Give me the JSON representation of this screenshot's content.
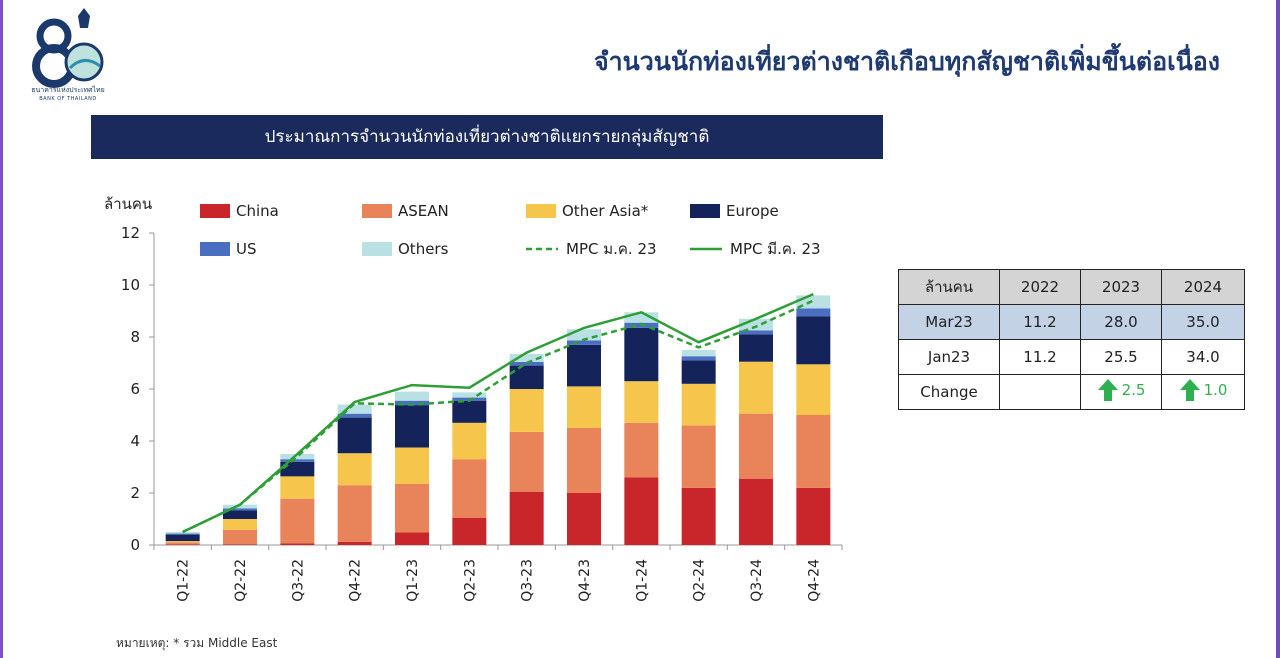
{
  "header": {
    "logo_text": "ธนาคารแห่งประเทศไทย",
    "logo_subtext": "BANK OF THAILAND",
    "title": "จำนวนนักท่องเที่ยวต่างชาติเกือบทุกสัญชาติเพิ่มขึ้นต่อเนื่อง",
    "banner": "ประมาณการจำนวนนักท่องเที่ยวต่างชาติแยกรายกลุ่มสัญชาติ"
  },
  "chart_data": {
    "type": "bar",
    "stacked": true,
    "ylabel": "ล้านคน",
    "ylim": [
      0,
      12
    ],
    "yticks": [
      0,
      2,
      4,
      6,
      8,
      10,
      12
    ],
    "categories": [
      "Q1-22",
      "Q2-22",
      "Q3-22",
      "Q4-22",
      "Q1-23",
      "Q2-23",
      "Q3-23",
      "Q4-23",
      "Q1-24",
      "Q2-24",
      "Q3-24",
      "Q4-24"
    ],
    "series": [
      {
        "name": "China",
        "color": "#c8262b",
        "values": [
          0.02,
          0.03,
          0.06,
          0.12,
          0.48,
          1.05,
          2.05,
          2.0,
          2.6,
          2.2,
          2.55,
          2.2
        ]
      },
      {
        "name": "ASEAN",
        "color": "#e8835a",
        "values": [
          0.08,
          0.55,
          1.72,
          2.18,
          1.87,
          2.25,
          2.3,
          2.5,
          2.1,
          2.4,
          2.5,
          2.8
        ]
      },
      {
        "name": "Other Asia*",
        "color": "#f6c64c",
        "values": [
          0.05,
          0.42,
          0.86,
          1.23,
          1.4,
          1.4,
          1.65,
          1.6,
          1.6,
          1.6,
          2.0,
          1.95
        ]
      },
      {
        "name": "Europe",
        "color": "#14235a",
        "values": [
          0.25,
          0.33,
          0.56,
          1.37,
          1.63,
          0.85,
          0.9,
          1.6,
          2.05,
          0.9,
          1.05,
          1.85
        ]
      },
      {
        "name": "US",
        "color": "#4a6fc0",
        "values": [
          0.04,
          0.08,
          0.1,
          0.15,
          0.17,
          0.12,
          0.14,
          0.17,
          0.2,
          0.16,
          0.15,
          0.3
        ]
      },
      {
        "name": "Others",
        "color": "#b9e0e3",
        "values": [
          0.06,
          0.14,
          0.2,
          0.35,
          0.35,
          0.2,
          0.31,
          0.43,
          0.4,
          0.24,
          0.45,
          0.5
        ]
      }
    ],
    "lines": [
      {
        "name": "MPC ม.ค. 23",
        "color": "#2e9e36",
        "dashed": true,
        "values": [
          0.5,
          1.55,
          3.4,
          5.45,
          5.4,
          5.55,
          7.0,
          7.9,
          8.5,
          7.6,
          8.4,
          9.4
        ]
      },
      {
        "name": "MPC มี.ค. 23",
        "color": "#2e9e36",
        "dashed": false,
        "values": [
          0.5,
          1.55,
          3.5,
          5.5,
          6.15,
          6.05,
          7.4,
          8.35,
          8.95,
          7.8,
          8.7,
          9.65
        ]
      }
    ],
    "legend": [
      "China",
      "ASEAN",
      "Other Asia*",
      "Europe",
      "US",
      "Others",
      "MPC ม.ค. 23",
      "MPC มี.ค. 23"
    ],
    "legend_position": "top"
  },
  "table": {
    "unit": "ล้านคน",
    "years": [
      "2022",
      "2023",
      "2024"
    ],
    "rows": [
      {
        "label": "Mar23",
        "values": [
          "11.2",
          "28.0",
          "35.0"
        ]
      },
      {
        "label": "Jan23",
        "values": [
          "11.2",
          "25.5",
          "34.0"
        ]
      }
    ],
    "change": {
      "label": "Change",
      "values": [
        "",
        "2.5",
        "1.0"
      ],
      "arrow_color": "#2fb050"
    }
  },
  "footnote": "หมายเหตุ: * รวม Middle East"
}
